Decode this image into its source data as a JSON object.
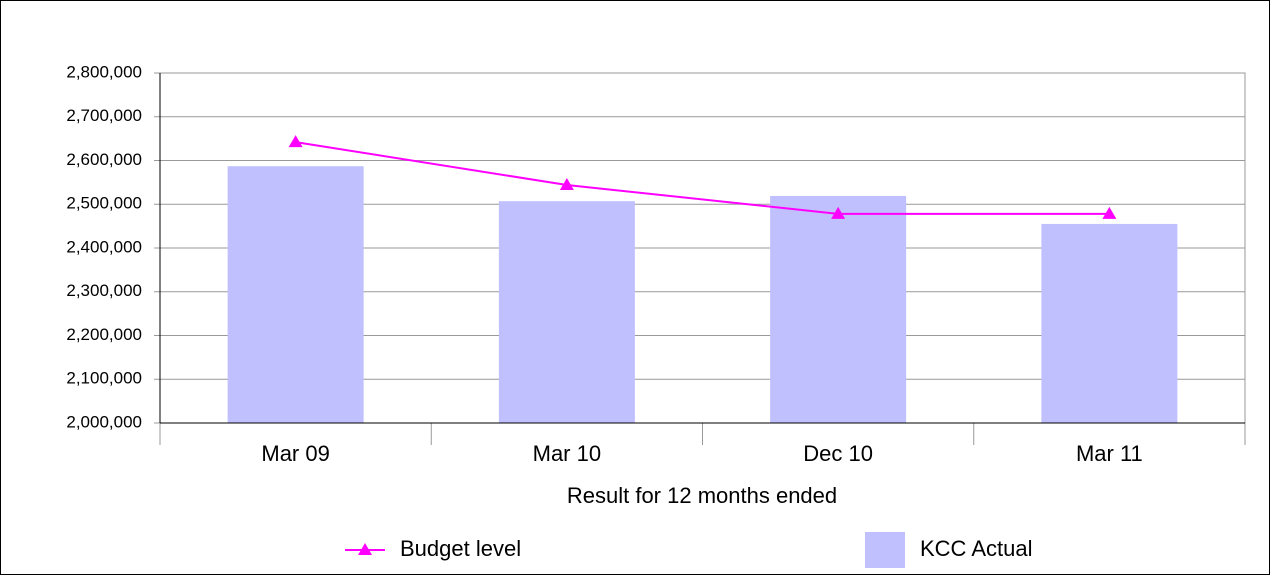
{
  "chart_data": {
    "type": "bar",
    "xlabel": "Result for 12 months ended",
    "categories": [
      "Mar 09",
      "Mar 10",
      "Dec 10",
      "Mar 11"
    ],
    "series": [
      {
        "name": "Budget level",
        "type": "line",
        "color": "#ff00ff",
        "values": [
          2642000,
          2544000,
          2478000,
          2478000
        ]
      },
      {
        "name": "KCC Actual",
        "type": "bar",
        "color": "#c0c0ff",
        "values": [
          2587000,
          2507000,
          2519000,
          2455000
        ]
      }
    ],
    "ylim": [
      2000000,
      2800000
    ],
    "yticks": [
      {
        "value": 2000000,
        "label": "2,000,000"
      },
      {
        "value": 2100000,
        "label": "2,100,000"
      },
      {
        "value": 2200000,
        "label": "2,200,000"
      },
      {
        "value": 2300000,
        "label": "2,300,000"
      },
      {
        "value": 2400000,
        "label": "2,400,000"
      },
      {
        "value": 2500000,
        "label": "2,500,000"
      },
      {
        "value": 2600000,
        "label": "2,600,000"
      },
      {
        "value": 2700000,
        "label": "2,700,000"
      },
      {
        "value": 2800000,
        "label": "2,800,000"
      }
    ],
    "grid": true,
    "legend": "bottom"
  }
}
